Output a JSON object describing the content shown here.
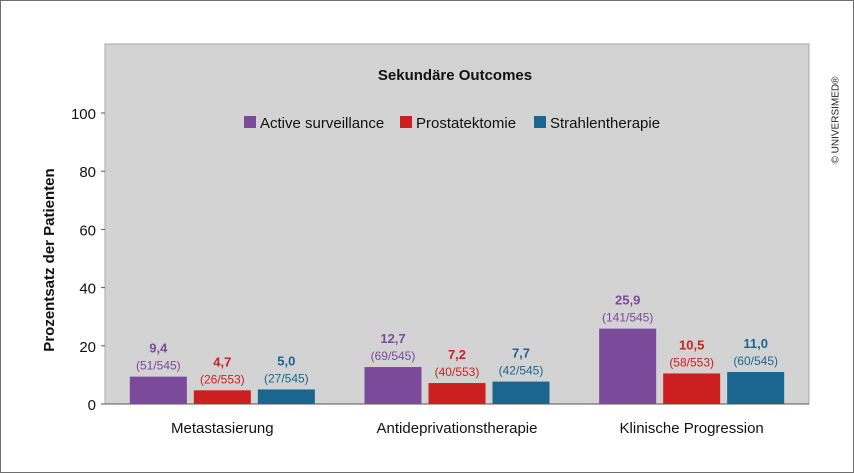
{
  "copyright": "© UNIVERSIMED®",
  "chart_data": {
    "type": "bar",
    "title": "Sekundäre Outcomes",
    "ylabel": "Prozentsatz der Patienten",
    "xlabel": "",
    "ylim": [
      0,
      100
    ],
    "yticks": [
      0,
      20,
      40,
      60,
      80,
      100
    ],
    "grid": false,
    "legend": "top-center",
    "categories": [
      "Metastasierung",
      "Antideprivationstherapie",
      "Klinische Progression"
    ],
    "series": [
      {
        "name": "Active surveillance",
        "color": "#7b4a9b",
        "values": [
          9.4,
          12.7,
          25.9
        ],
        "value_labels": [
          "9,4",
          "12,7",
          "25,9"
        ],
        "count_labels": [
          "(51/545)",
          "(69/545)",
          "(141/545)"
        ]
      },
      {
        "name": "Prostatektomie",
        "color": "#cc1f1f",
        "values": [
          4.7,
          7.2,
          10.5
        ],
        "value_labels": [
          "4,7",
          "7,2",
          "10,5"
        ],
        "count_labels": [
          "(26/553)",
          "(40/553)",
          "(58/553)"
        ]
      },
      {
        "name": "Strahlentherapie",
        "color": "#1a6690",
        "values": [
          5.0,
          7.7,
          11.0
        ],
        "value_labels": [
          "5,0",
          "7,7",
          "11,0"
        ],
        "count_labels": [
          "(27/545)",
          "(42/545)",
          "(60/545)"
        ]
      }
    ]
  }
}
